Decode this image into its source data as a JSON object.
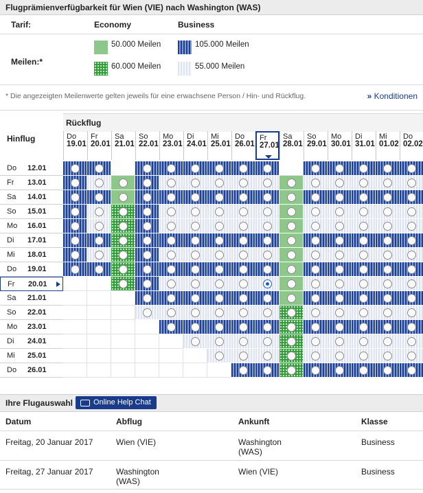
{
  "header": {
    "title": "Flugprämienverfügbarkeit für Wien (VIE) nach Washington (WAS)"
  },
  "legend": {
    "tarif_label": "Tarif:",
    "economy_label": "Economy",
    "business_label": "Business",
    "meilen_label": "Meilen:*",
    "economy_1": "50.000 Meilen",
    "economy_2": "60.000 Meilen",
    "business_1": "105.000 Meilen",
    "business_2": "55.000 Meilen"
  },
  "note": "* Die angezeigten Meilenwerte gelten jeweils für eine erwachsene Person / Hin- und Rückflug.",
  "konditionen_link": "Konditionen",
  "konditionen_arrow": "»",
  "grid": {
    "rueckflug_label": "Rückflug",
    "hinflug_label": "Hinflug",
    "return_dates": [
      {
        "wd": "Do",
        "date": "19.01"
      },
      {
        "wd": "Fr",
        "date": "20.01"
      },
      {
        "wd": "Sa",
        "date": "21.01"
      },
      {
        "wd": "So",
        "date": "22.01"
      },
      {
        "wd": "Mo",
        "date": "23.01"
      },
      {
        "wd": "Di",
        "date": "24.01"
      },
      {
        "wd": "Mi",
        "date": "25.01"
      },
      {
        "wd": "Do",
        "date": "26.01"
      },
      {
        "wd": "Fr",
        "date": "27.01"
      },
      {
        "wd": "Sa",
        "date": "28.01"
      },
      {
        "wd": "So",
        "date": "29.01"
      },
      {
        "wd": "Mo",
        "date": "30.01"
      },
      {
        "wd": "Di",
        "date": "31.01"
      },
      {
        "wd": "Mi",
        "date": "01.02"
      },
      {
        "wd": "Do",
        "date": "02.02"
      }
    ],
    "outbound_dates": [
      {
        "wd": "Do",
        "date": "12.01"
      },
      {
        "wd": "Fr",
        "date": "13.01"
      },
      {
        "wd": "Sa",
        "date": "14.01"
      },
      {
        "wd": "So",
        "date": "15.01"
      },
      {
        "wd": "Mo",
        "date": "16.01"
      },
      {
        "wd": "Di",
        "date": "17.01"
      },
      {
        "wd": "Mi",
        "date": "18.01"
      },
      {
        "wd": "Do",
        "date": "19.01"
      },
      {
        "wd": "Fr",
        "date": "20.01"
      },
      {
        "wd": "Sa",
        "date": "21.01"
      },
      {
        "wd": "So",
        "date": "22.01"
      },
      {
        "wd": "Mo",
        "date": "23.01"
      },
      {
        "wd": "Di",
        "date": "24.01"
      },
      {
        "wd": "Mi",
        "date": "25.01"
      },
      {
        "wd": "Do",
        "date": "26.01"
      }
    ],
    "selected_return": 8,
    "selected_outbound": 8,
    "fare_key": {
      "B": "business_105000",
      "b": "business_55000",
      "E": "economy_50000",
      "G": "economy_60000",
      "-": "none"
    },
    "rows": [
      "BBnBBBBBBnBBBBB",
      "BbEBbbbbbEbbbbb",
      "BBEBBBBBBEBBBBB",
      "BbGBbbbbbEbbbbb",
      "BbGBbbbbbEbbbbb",
      "BBGBBBBBBEBBBBB",
      "BbGBbbbbbEbbbbb",
      "BBGBBBBBBEBBBBB",
      "--GBbbbbbEbbbbb",
      "---BBBBBBEBBBBB",
      "---bbbbbbGbbbbb",
      "----BBBBBGBBBBB",
      "-----bbbbGbbbbb",
      "------bbbGbbbbb",
      "-------BBGBBBBB"
    ]
  },
  "selection": {
    "title": "Ihre Flugauswahl",
    "help_button": "Online Help Chat",
    "columns": [
      "Datum",
      "Abflug",
      "Ankunft",
      "Klasse"
    ],
    "flights": [
      {
        "datum": "Freitag, 20 Januar 2017",
        "abflug": "Wien (VIE)",
        "ankunft": "Washington (WAS)",
        "klasse": "Business"
      },
      {
        "datum": "Freitag, 27 Januar 2017",
        "abflug": "Washington (WAS)",
        "ankunft": "Wien (VIE)",
        "klasse": "Business"
      }
    ]
  },
  "colors": {
    "accent": "#1a3b8c",
    "business_dark": "#1f3e8f",
    "economy_light": "#8dc88a",
    "economy_dark": "#2e9a36"
  }
}
